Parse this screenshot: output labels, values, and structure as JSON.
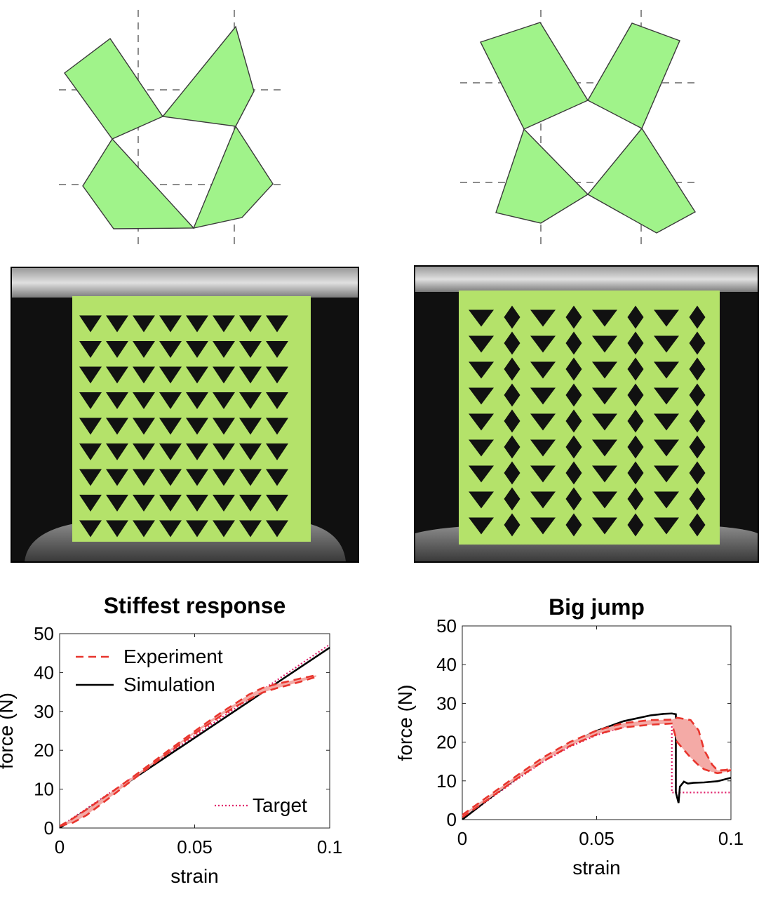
{
  "colors": {
    "tile_green": "#a0f38a",
    "tile_stroke": "#3a3a3a",
    "specimen_green": "#b4e26a",
    "experiment_red": "#e8352d",
    "experiment_band": "#f4aaa6",
    "simulation": "#000000",
    "target": "#e0206a"
  },
  "panels": {
    "left_photo_label": "",
    "right_photo_label": ""
  },
  "chart_data": [
    {
      "type": "line",
      "title": "Stiffest response",
      "xlabel": "strain",
      "ylabel": "force (N)",
      "xlim": [
        0,
        0.1
      ],
      "ylim": [
        0,
        50
      ],
      "xticks": [
        0,
        0.05,
        0.1
      ],
      "xtick_labels": [
        "0",
        "0.05",
        "0.1"
      ],
      "yticks": [
        0,
        10,
        20,
        30,
        40,
        50
      ],
      "ytick_labels": [
        "0",
        "10",
        "20",
        "30",
        "40",
        "50"
      ],
      "grid": false,
      "legend": [
        "Experiment",
        "Simulation",
        "Target"
      ],
      "series": [
        {
          "name": "Target",
          "style": "dotted",
          "x": [
            0,
            0.1
          ],
          "y": [
            0.3,
            47.2
          ]
        },
        {
          "name": "Simulation",
          "style": "solid",
          "x": [
            0,
            0.1
          ],
          "y": [
            0,
            46.4
          ]
        },
        {
          "name": "Experiment",
          "style": "dashed",
          "band": true,
          "x": [
            0,
            0.005,
            0.01,
            0.02,
            0.03,
            0.04,
            0.05,
            0.06,
            0.065,
            0.07,
            0.075,
            0.08,
            0.085,
            0.09,
            0.095
          ],
          "y_upper": [
            0.5,
            2.5,
            4.8,
            9.6,
            14.6,
            19.8,
            24.9,
            29.8,
            32.0,
            34.3,
            36.0,
            37.0,
            37.8,
            38.6,
            39.3
          ],
          "y_lower": [
            0.5,
            1.4,
            3.3,
            8.6,
            14.0,
            19.2,
            24.3,
            29.0,
            31.2,
            33.0,
            34.8,
            35.9,
            36.8,
            37.8,
            38.9
          ]
        }
      ]
    },
    {
      "type": "line",
      "title": "Big jump",
      "xlabel": "strain",
      "ylabel": "force (N)",
      "xlim": [
        0,
        0.1
      ],
      "ylim": [
        0,
        50
      ],
      "xticks": [
        0,
        0.05,
        0.1
      ],
      "xtick_labels": [
        "0",
        "0.05",
        "0.1"
      ],
      "yticks": [
        0,
        10,
        20,
        30,
        40,
        50
      ],
      "ytick_labels": [
        "0",
        "10",
        "20",
        "30",
        "40",
        "50"
      ],
      "grid": false,
      "series": [
        {
          "name": "Target",
          "style": "dotted",
          "x": [
            0,
            0.01,
            0.02,
            0.03,
            0.04,
            0.05,
            0.06,
            0.07,
            0.075,
            0.078,
            0.078,
            0.1
          ],
          "y": [
            0,
            5.2,
            10.2,
            14.9,
            18.8,
            21.8,
            23.9,
            25.2,
            25.5,
            25.6,
            7.0,
            7.0
          ]
        },
        {
          "name": "Simulation",
          "style": "solid",
          "x": [
            0,
            0.01,
            0.02,
            0.03,
            0.04,
            0.05,
            0.06,
            0.07,
            0.075,
            0.078,
            0.0795,
            0.0795,
            0.0805,
            0.081,
            0.0825,
            0.084,
            0.086,
            0.09,
            0.095,
            0.1
          ],
          "y": [
            0,
            5.4,
            10.6,
            15.5,
            19.6,
            22.9,
            25.4,
            26.9,
            27.3,
            27.4,
            27.2,
            7.0,
            4.3,
            8.5,
            9.8,
            9.3,
            9.5,
            9.6,
            9.9,
            10.8
          ]
        },
        {
          "name": "Experiment",
          "style": "dashed",
          "band": true,
          "x": [
            0,
            0.01,
            0.02,
            0.03,
            0.04,
            0.05,
            0.06,
            0.07,
            0.078,
            0.08,
            0.085,
            0.088,
            0.09,
            0.093,
            0.095,
            0.098,
            0.1
          ],
          "y_upper": [
            1.2,
            6.2,
            11.2,
            16.0,
            20.0,
            23.0,
            24.9,
            25.7,
            25.8,
            26.3,
            25.7,
            23.0,
            18.0,
            14.2,
            12.7,
            12.8,
            13.2
          ],
          "y_lower": [
            0.6,
            5.4,
            10.4,
            15.0,
            19.0,
            22.0,
            23.8,
            24.5,
            24.8,
            20.0,
            16.0,
            14.0,
            13.0,
            12.3,
            12.0,
            12.3,
            12.8
          ]
        }
      ]
    }
  ]
}
